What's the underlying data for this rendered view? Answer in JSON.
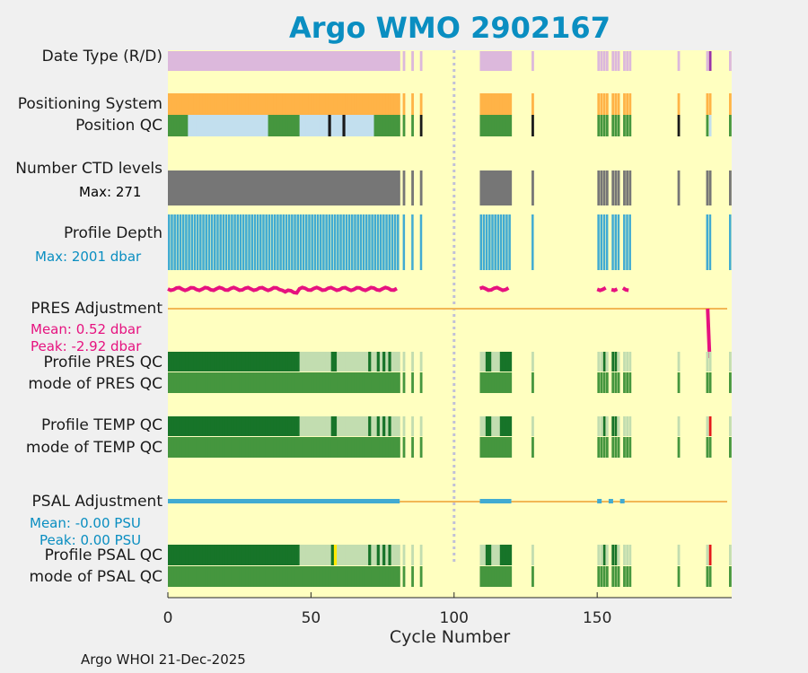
{
  "title": "Argo WMO 2902167",
  "footer": "Argo WHOI 21-Dec-2025",
  "labels": {
    "date_type": "Date Type (R/D)",
    "positioning_system": "Positioning System",
    "position_qc": "Position QC",
    "number_ctd_levels": "Number CTD levels",
    "ctd_max": "Max: 271",
    "profile_depth": "Profile Depth",
    "depth_max": "Max: 2001 dbar",
    "pres_adjustment": "PRES Adjustment",
    "pres_mean": "Mean: 0.52 dbar",
    "pres_peak": "Peak: -2.92 dbar",
    "profile_pres_qc": "Profile PRES QC",
    "mode_pres_qc": "mode of PRES QC",
    "profile_temp_qc": "Profile TEMP QC",
    "mode_temp_qc": "mode of TEMP QC",
    "psal_adjustment": "PSAL Adjustment",
    "psal_mean": "Mean: -0.00 PSU",
    "psal_peak": "Peak: 0.00 PSU",
    "profile_psal_qc": "Profile PSAL QC",
    "mode_psal_qc": "mode of PSAL QC"
  },
  "chart_data": {
    "type": "timeline",
    "title": "Argo WMO 2902167",
    "xlabel": "Cycle Number",
    "xlim": [
      0,
      197
    ],
    "xticks": [
      0,
      50,
      100,
      150
    ],
    "reference_line_x": 100,
    "cycles_present": [
      [
        0,
        80
      ],
      [
        82,
        82
      ],
      [
        85,
        85
      ],
      [
        88,
        88
      ],
      [
        109,
        119
      ],
      [
        127,
        127
      ],
      [
        150,
        153
      ],
      [
        155,
        157
      ],
      [
        159,
        161
      ],
      [
        178,
        178
      ],
      [
        188,
        189
      ],
      [
        196,
        196
      ]
    ],
    "pres_adjustment_segments": [
      [
        0,
        80
      ],
      [
        109,
        119
      ],
      [
        150,
        153
      ],
      [
        155,
        157
      ],
      [
        159,
        161
      ]
    ],
    "psal_adjustment_segments": [
      [
        0,
        80
      ],
      [
        109,
        119
      ],
      [
        150,
        150
      ],
      [
        154,
        154
      ],
      [
        158,
        158
      ]
    ],
    "colors": {
      "background": "#ffffc0",
      "date_type": "#dcb8dc",
      "date_type_delayed": "#9933aa",
      "positioning": "#ffb347",
      "qc_good": "#45963e",
      "qc_probably_good": "#c2ddb0",
      "qc_profile_A": "#177429",
      "qc_bad": "#e41a1c",
      "qc_flag_yellow": "#ffea00",
      "qc_black": "#1a1a1a",
      "qc_interp": "#c2dfee",
      "ctd": "#767676",
      "depth": "#41abd2",
      "pres_adj": "#e6127f",
      "psal_adj": "#41abd2",
      "zero_line": "#f2b755",
      "ref_line": "#c0c0d8"
    }
  }
}
